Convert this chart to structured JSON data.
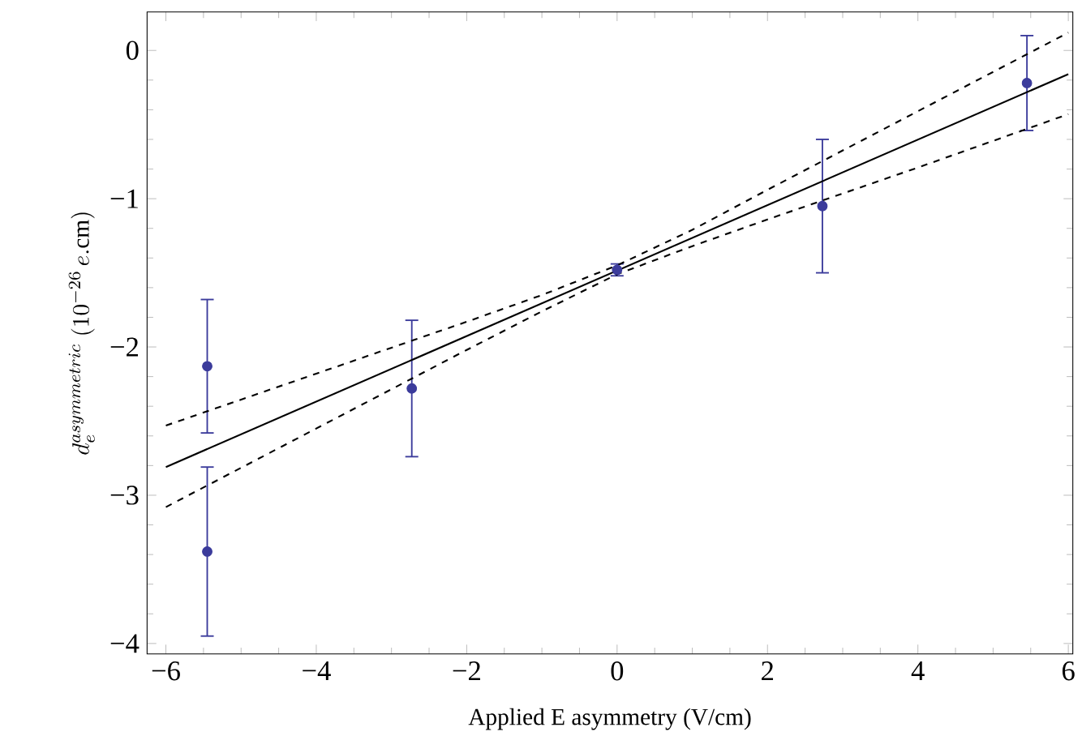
{
  "chart_data": {
    "type": "scatter",
    "xlabel": "Applied E asymmetry (V/cm)",
    "ylabel": "d_{e}^{asymmetric}\\;(10^{-26}\\,e.\\mathrm{cm})",
    "xlim": [
      -6.25,
      6.06
    ],
    "ylim": [
      -4.07,
      0.26
    ],
    "xticks": [
      {
        "value": -6,
        "label": "−6"
      },
      {
        "value": -4,
        "label": "−4"
      },
      {
        "value": -2,
        "label": "−2"
      },
      0,
      2,
      4,
      6
    ],
    "yticks": [
      {
        "value": -4,
        "label": "−4"
      },
      {
        "value": -3,
        "label": "−3"
      },
      {
        "value": -2,
        "label": "−2"
      },
      {
        "value": -1,
        "label": "−1"
      },
      0
    ],
    "grid": false,
    "series": [
      {
        "color": "#3b3b9b",
        "marker": "circle",
        "x": [
          -5.45,
          -5.45,
          -2.73,
          0,
          2.73,
          5.45
        ],
        "values": [
          -2.13,
          -3.38,
          -2.28,
          -1.48,
          -1.05,
          -0.22
        ],
        "errors": [
          0.45,
          0.57,
          0.46,
          0.04,
          0.45,
          0.32
        ]
      },
      {
        "type": "line",
        "color": "#000000",
        "marker": "none",
        "line_style": "solid",
        "x": [
          -6,
          6
        ],
        "values": [
          -2.81,
          -0.16
        ]
      },
      {
        "type": "line",
        "color": "#000000",
        "marker": "none",
        "line_style": "dashed",
        "x": [
          -6,
          -4,
          -2,
          -1,
          0,
          1,
          2,
          4,
          6
        ],
        "values": [
          -2.53,
          -2.18,
          -1.83,
          -1.65,
          -1.45,
          -1.21,
          -0.94,
          -0.41,
          0.12
        ]
      },
      {
        "type": "line",
        "color": "#000000",
        "marker": "none",
        "line_style": "dashed",
        "x": [
          -6,
          -4,
          -2,
          -1,
          0,
          1,
          2,
          4,
          6
        ],
        "values": [
          -3.08,
          -2.55,
          -2.02,
          -1.76,
          -1.51,
          -1.32,
          -1.14,
          -0.79,
          -0.43
        ]
      }
    ]
  }
}
